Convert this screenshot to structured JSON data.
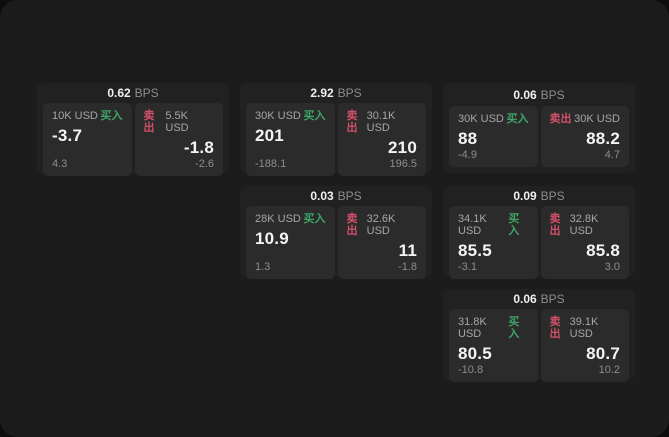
{
  "labels": {
    "bps": "BPS",
    "buy": "买入",
    "sell": "卖出"
  },
  "colors": {
    "buy": "#3ea566",
    "sell": "#d15068"
  },
  "cards": [
    {
      "row": 1,
      "col": 1,
      "bps": "0.62",
      "buy": {
        "amount": "10K USD",
        "value": "-3.7",
        "sub": "4.3"
      },
      "sell": {
        "amount": "5.5K USD",
        "value": "-1.8",
        "sub": "-2.6"
      }
    },
    {
      "row": 1,
      "col": 2,
      "bps": "2.92",
      "buy": {
        "amount": "30K USD",
        "value": "201",
        "sub": "-188.1"
      },
      "sell": {
        "amount": "30.1K USD",
        "value": "210",
        "sub": "196.5"
      }
    },
    {
      "row": 1,
      "col": 3,
      "bps": "0.06",
      "buy": {
        "amount": "30K USD",
        "value": "88",
        "sub": "-4.9"
      },
      "sell": {
        "amount": "30K USD",
        "value": "88.2",
        "sub": "4.7"
      }
    },
    {
      "row": 2,
      "col": 2,
      "bps": "0.03",
      "buy": {
        "amount": "28K USD",
        "value": "10.9",
        "sub": "1.3"
      },
      "sell": {
        "amount": "32.6K USD",
        "value": "11",
        "sub": "-1.8"
      }
    },
    {
      "row": 2,
      "col": 3,
      "bps": "0.09",
      "buy": {
        "amount": "34.1K USD",
        "value": "85.5",
        "sub": "-3.1"
      },
      "sell": {
        "amount": "32.8K USD",
        "value": "85.8",
        "sub": "3.0"
      }
    },
    {
      "row": 3,
      "col": 3,
      "bps": "0.06",
      "buy": {
        "amount": "31.8K USD",
        "value": "80.5",
        "sub": "-10.8"
      },
      "sell": {
        "amount": "39.1K USD",
        "value": "80.7",
        "sub": "10.2"
      }
    }
  ]
}
